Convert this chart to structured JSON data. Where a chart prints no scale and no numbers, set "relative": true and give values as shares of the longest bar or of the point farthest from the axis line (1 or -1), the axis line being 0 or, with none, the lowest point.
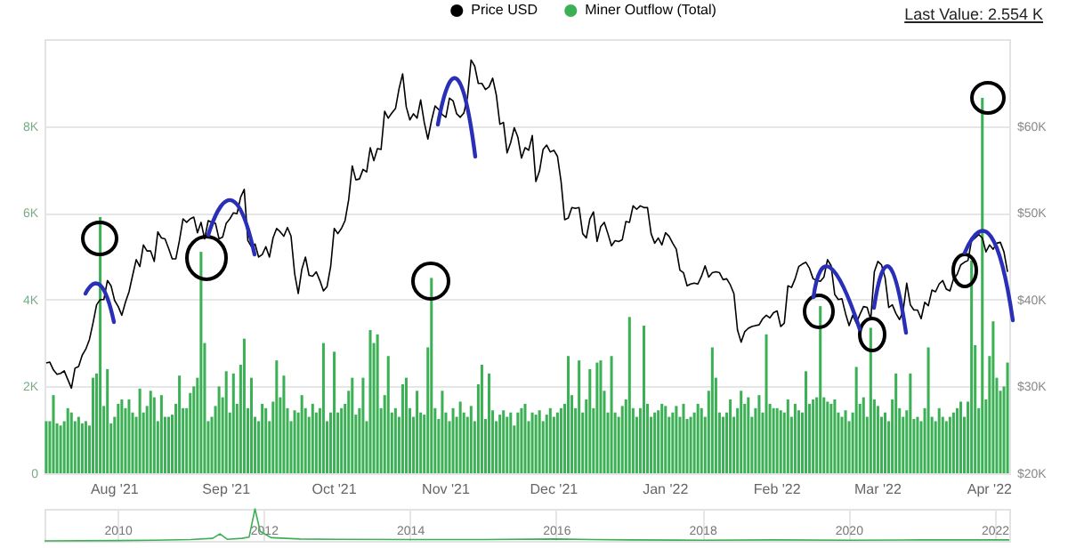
{
  "chart_data": [
    {
      "type": "bar",
      "categories": [
        null,
        null,
        null,
        null,
        null,
        null,
        null,
        null,
        null,
        null,
        null,
        null,
        null,
        null,
        null,
        null,
        null,
        null,
        null,
        "Aug '21",
        null,
        null,
        null,
        null,
        null,
        null,
        null,
        null,
        null,
        null,
        null,
        null,
        null,
        null,
        null,
        null,
        null,
        null,
        null,
        null,
        null,
        null,
        null,
        null,
        null,
        null,
        null,
        null,
        null,
        null,
        "Sep '21",
        null,
        null,
        null,
        null,
        null,
        null,
        null,
        null,
        null,
        null,
        null,
        null,
        null,
        null,
        null,
        null,
        null,
        null,
        null,
        null,
        null,
        null,
        null,
        null,
        null,
        null,
        null,
        null,
        null,
        "Oct '21",
        null,
        null,
        null,
        null,
        null,
        null,
        null,
        null,
        null,
        null,
        null,
        null,
        null,
        null,
        null,
        null,
        null,
        null,
        null,
        null,
        null,
        null,
        null,
        null,
        null,
        null,
        null,
        null,
        null,
        null,
        "Nov '21",
        null,
        null,
        null,
        null,
        null,
        null,
        null,
        null,
        null,
        null,
        null,
        null,
        null,
        null,
        null,
        null,
        null,
        null,
        null,
        null,
        null,
        null,
        null,
        null,
        null,
        null,
        null,
        null,
        null,
        "Dec '21",
        null,
        null,
        null,
        null,
        null,
        null,
        null,
        null,
        null,
        null,
        null,
        null,
        null,
        null,
        null,
        null,
        null,
        null,
        null,
        null,
        null,
        null,
        null,
        null,
        null,
        null,
        null,
        null,
        null,
        null,
        "Jan '22",
        null,
        null,
        null,
        null,
        null,
        null,
        null,
        null,
        null,
        null,
        null,
        null,
        null,
        null,
        null,
        null,
        null,
        null,
        null,
        null,
        null,
        null,
        null,
        null,
        null,
        null,
        null,
        null,
        null,
        null,
        "Feb '22",
        null,
        null,
        null,
        null,
        null,
        null,
        null,
        null,
        null,
        null,
        null,
        null,
        null,
        null,
        null,
        null,
        null,
        null,
        null,
        null,
        null,
        null,
        null,
        null,
        null,
        null,
        null,
        "Mar '22",
        null,
        null,
        null,
        null,
        null,
        null,
        null,
        null,
        null,
        null,
        null,
        null,
        null,
        null,
        null,
        null,
        null,
        null,
        null,
        null,
        null,
        null,
        null,
        null,
        null,
        null,
        null,
        null,
        null,
        null,
        "Apr '22",
        null,
        null,
        null,
        null,
        null
      ],
      "series": [
        {
          "name": "Price USD",
          "type": "line",
          "axis": "y2",
          "color": "#000000",
          "values": [
            32700,
            32800,
            31900,
            31400,
            31500,
            31800,
            30800,
            29800,
            32100,
            32300,
            33600,
            34300,
            35400,
            37300,
            39400,
            40000,
            40000,
            42200,
            41600,
            39900,
            39200,
            38200,
            39700,
            40900,
            42800,
            44600,
            43800,
            46300,
            45600,
            45600,
            44400,
            47800,
            47100,
            47000,
            45900,
            44700,
            44700,
            46800,
            49300,
            48900,
            49300,
            49500,
            47700,
            48900,
            47000,
            49100,
            48900,
            48800,
            47000,
            47200,
            48800,
            49300,
            50000,
            49900,
            51800,
            52700,
            46800,
            46100,
            46400,
            44900,
            45200,
            46100,
            44900,
            47100,
            48200,
            47800,
            47300,
            48300,
            47300,
            43000,
            40700,
            43500,
            44900,
            42800,
            42700,
            43200,
            42200,
            41000,
            41500,
            43800,
            48200,
            47600,
            48200,
            49100,
            51500,
            55400,
            53800,
            53900,
            55000,
            54700,
            57500,
            56000,
            57400,
            57300,
            61700,
            60900,
            61500,
            62000,
            64300,
            66000,
            62200,
            60700,
            61400,
            60900,
            63000,
            60400,
            58500,
            60600,
            62300,
            61900,
            61300,
            61000,
            63200,
            62900,
            61400,
            61000,
            61500,
            63300,
            67600,
            66900,
            64900,
            64900,
            64200,
            64500,
            65500,
            63600,
            60200,
            60400,
            56900,
            58100,
            59800,
            58700,
            56300,
            57500,
            57200,
            58900,
            53600,
            54800,
            57300,
            57800,
            57000,
            57200,
            56500,
            53600,
            49200,
            49400,
            50600,
            50500,
            50600,
            47600,
            47100,
            49300,
            50100,
            46700,
            48400,
            48900,
            47600,
            46200,
            46800,
            46700,
            46900,
            49000,
            48900,
            50800,
            50400,
            50800,
            50600,
            50600,
            47600,
            46500,
            47100,
            46300,
            47700,
            47300,
            46500,
            45800,
            43400,
            43100,
            41600,
            41800,
            41900,
            41800,
            42700,
            43900,
            42600,
            43100,
            43200,
            43100,
            42300,
            42400,
            41700,
            40700,
            36500,
            35100,
            36300,
            36700,
            36900,
            37000,
            37100,
            37800,
            38200,
            37900,
            38500,
            38700,
            36900,
            37300,
            41600,
            41400,
            42400,
            43800,
            44100,
            44300,
            43600,
            42400,
            42200,
            42100,
            42600,
            44600,
            43900,
            40600,
            40000,
            40100,
            38400,
            37000,
            38200,
            37300,
            38300,
            39200,
            39100,
            37700,
            43200,
            44400,
            44000,
            42500,
            39100,
            39400,
            38400,
            37700,
            38700,
            41900,
            39400,
            38800,
            38800,
            37800,
            39700,
            39300,
            41100,
            40900,
            41800,
            42200,
            41200,
            41000,
            42400,
            42900,
            44000,
            44300,
            44500,
            46800,
            47100,
            47500,
            47100,
            45500,
            46300,
            45800,
            46500,
            46600,
            45500,
            43200
          ]
        },
        {
          "name": "Miner Outflow (Total)",
          "color": "#3bb054",
          "values": [
            1200,
            1200,
            1800,
            1150,
            1100,
            1200,
            1500,
            1400,
            1200,
            1300,
            1150,
            1200,
            1100,
            2200,
            2300,
            5900,
            1550,
            2400,
            1150,
            1300,
            1600,
            1700,
            1500,
            1700,
            1400,
            1300,
            1950,
            1400,
            1550,
            1900,
            1750,
            1200,
            1800,
            1300,
            1300,
            1350,
            1600,
            2250,
            1500,
            1500,
            1850,
            2000,
            2200,
            5100,
            3000,
            1200,
            1300,
            1550,
            2000,
            1750,
            2350,
            1400,
            2300,
            1600,
            2500,
            3100,
            1500,
            2200,
            1300,
            1200,
            1600,
            1500,
            1200,
            1650,
            2600,
            1750,
            2250,
            1500,
            1200,
            1450,
            1400,
            1800,
            1500,
            1300,
            1600,
            1400,
            1500,
            3000,
            1200,
            1400,
            2800,
            1400,
            1500,
            1600,
            1900,
            2200,
            1350,
            1500,
            2200,
            1200,
            3300,
            3000,
            3200,
            1500,
            1800,
            2700,
            1400,
            1500,
            1300,
            2050,
            2200,
            1500,
            1300,
            1900,
            1400,
            1350,
            2900,
            4500,
            1500,
            1250,
            1900,
            1400,
            1200,
            1500,
            1300,
            1650,
            1400,
            1300,
            1550,
            1200,
            2050,
            2500,
            1250,
            2300,
            1450,
            1200,
            1350,
            1450,
            1300,
            1400,
            1100,
            1400,
            1500,
            1600,
            1200,
            1400,
            1350,
            1450,
            1200,
            1350,
            1500,
            1300,
            1400,
            1500,
            1600,
            2700,
            1800,
            1500,
            2600,
            1400,
            1700,
            2400,
            1500,
            2550,
            2600,
            1900,
            1400,
            2700,
            1400,
            1300,
            1550,
            1700,
            3600,
            1500,
            1300,
            1500,
            3400,
            1600,
            1300,
            1400,
            1450,
            1600,
            1550,
            1300,
            1400,
            1550,
            1300,
            1600,
            1250,
            1300,
            1400,
            1600,
            1500,
            1300,
            1900,
            2900,
            2200,
            1400,
            1300,
            1400,
            1700,
            1300,
            1500,
            1900,
            1600,
            1750,
            1300,
            1500,
            1800,
            1400,
            3200,
            1600,
            1500,
            1500,
            1450,
            1400,
            1700,
            1300,
            1600,
            1450,
            1400,
            2350,
            1600,
            1700,
            1750,
            3850,
            1750,
            1650,
            1600,
            1700,
            1400,
            1300,
            1450,
            1200,
            1400,
            2450,
            1600,
            1750,
            1300,
            3350,
            1700,
            1550,
            1300,
            1400,
            1200,
            1700,
            2300,
            1500,
            1300,
            1450,
            2300,
            1250,
            1300,
            1200,
            1500,
            2900,
            1300,
            1200,
            1500,
            1300,
            1200,
            1300,
            1400,
            1500,
            1650,
            1300,
            1650,
            4900,
            2950,
            1500,
            8650,
            1700,
            2700,
            3500,
            2200,
            1900,
            2000,
            2550
          ]
        }
      ],
      "ylim": [
        0,
        10000
      ],
      "yticks": [
        0,
        {
          "value": 2000,
          "label": "2K"
        },
        {
          "value": 4000,
          "label": "4K"
        },
        {
          "value": 6000,
          "label": "6K"
        },
        {
          "value": 8000,
          "label": "8K"
        }
      ],
      "y2lim": [
        20000,
        70000
      ],
      "y2ticks": [
        {
          "value": 20000,
          "label": "$20K"
        },
        {
          "value": 30000,
          "label": "$30K"
        },
        {
          "value": 40000,
          "label": "$40K"
        },
        {
          "value": 50000,
          "label": "$50K"
        },
        {
          "value": 60000,
          "label": "$60K"
        }
      ],
      "grid": "y",
      "legend": "top",
      "annotations": [
        "Last Value: 2.554 K"
      ]
    },
    {
      "type": "line",
      "relative": true,
      "x": [
        2009.0,
        2010.0,
        2010.5,
        2011.0,
        2011.3,
        2011.4,
        2011.5,
        2011.7,
        2011.8,
        2011.88,
        2011.95,
        2012.1,
        2012.5,
        2013.0,
        2014.0,
        2015.0,
        2016.0,
        2016.5,
        2017.0,
        2018.0,
        2019.0,
        2020.0,
        2021.0,
        2022.2
      ],
      "series": [
        {
          "color": "#3bb054",
          "values": [
            0,
            0.01,
            0.02,
            0.04,
            0.08,
            0.22,
            0.05,
            0.08,
            0.12,
            1,
            0.3,
            0.1,
            0.06,
            0.05,
            0.04,
            0.04,
            0.06,
            0.04,
            0.03,
            0.02,
            0.03,
            0.02,
            0.03,
            0.03
          ]
        }
      ],
      "xlim": [
        2009.0,
        2022.2
      ],
      "xticks": [
        2010,
        2012,
        2014,
        2016,
        2018,
        2020,
        2022
      ],
      "grid": "x"
    }
  ]
}
